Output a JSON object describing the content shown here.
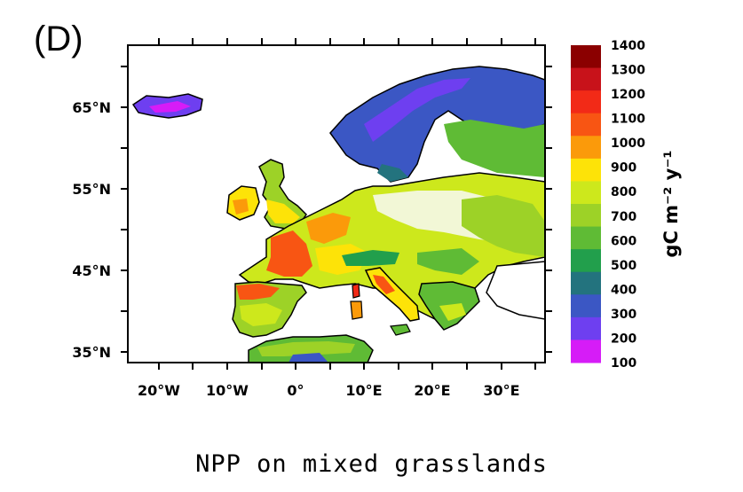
{
  "panel_label": "(D)",
  "caption": "NPP on mixed grasslands",
  "map": {
    "lat_labels": [
      "65°N",
      "55°N",
      "45°N",
      "35°N"
    ],
    "lon_labels": [
      "20°W",
      "10°W",
      "0°",
      "10°E",
      "20°E",
      "30°E"
    ],
    "lon_range": [
      -25,
      36
    ],
    "lat_range": [
      33,
      71
    ]
  },
  "colorbar": {
    "unit_label": "gC m⁻² y⁻¹",
    "ticks": [
      "1400",
      "1300",
      "1200",
      "1100",
      "1000",
      "900",
      "800",
      "700",
      "600",
      "500",
      "400",
      "300",
      "200",
      "100"
    ],
    "colors": [
      "#8b0000",
      "#c8121a",
      "#f22a17",
      "#f85513",
      "#fb9a0a",
      "#fde308",
      "#cde81c",
      "#9dd227",
      "#5fbb35",
      "#229f4c",
      "#23737e",
      "#3b57c4",
      "#6e3ff0",
      "#d61cf7"
    ]
  },
  "regions": [
    {
      "name": "iceland",
      "value": 250
    },
    {
      "name": "scandinavia-north",
      "value": 300
    },
    {
      "name": "ireland",
      "value": 1000
    },
    {
      "name": "britain-north",
      "value": 700
    },
    {
      "name": "britain-south",
      "value": 900
    },
    {
      "name": "france",
      "value": 900
    },
    {
      "name": "france-west",
      "value": 1100
    },
    {
      "name": "central-europe",
      "value": 850
    },
    {
      "name": "eastern-europe",
      "value": 750
    },
    {
      "name": "alps",
      "value": 500
    },
    {
      "name": "iberia",
      "value": 700
    },
    {
      "name": "iberia-north",
      "value": 1100
    },
    {
      "name": "italy",
      "value": 1000
    },
    {
      "name": "sardinia",
      "value": 1200
    },
    {
      "name": "balkans",
      "value": 650
    },
    {
      "name": "north-africa",
      "value": 500
    }
  ]
}
